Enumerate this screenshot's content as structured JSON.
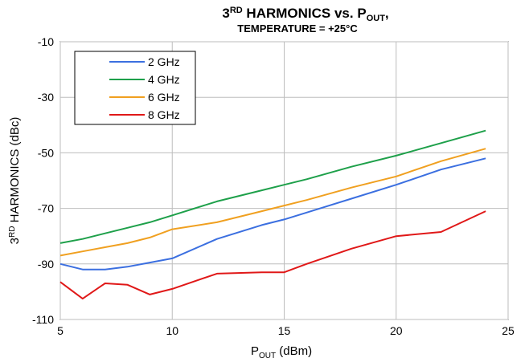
{
  "chart_data": {
    "type": "line",
    "title": {
      "pre": "3",
      "sup": "RD",
      "mid": " HARMONICS vs. P",
      "sub": "OUT",
      "post": ","
    },
    "subtitle": "TEMPERATURE = +25°C",
    "xlabel": {
      "pre": "P",
      "sub": "OUT",
      "post": " (dBm)"
    },
    "ylabel": {
      "pre": "3",
      "sup": "RD",
      "post": " HARMONICS (dBc)"
    },
    "xlim": [
      5,
      25
    ],
    "ylim": [
      -110,
      -10
    ],
    "xticks": [
      5,
      10,
      15,
      20,
      25
    ],
    "yticks": [
      -110,
      -90,
      -70,
      -50,
      -30,
      -10
    ],
    "grid": true,
    "legend_position": "top-left",
    "series": [
      {
        "name": "2 GHz",
        "color": "#3b6fe0",
        "x": [
          5,
          6,
          7,
          8,
          9,
          10,
          12,
          14,
          15,
          16,
          18,
          20,
          22,
          24
        ],
        "y": [
          -90,
          -92,
          -92,
          -91,
          -89.5,
          -88,
          -81,
          -76,
          -74,
          -71.5,
          -66.5,
          -61.5,
          -56,
          -52
        ]
      },
      {
        "name": "4 GHz",
        "color": "#1ea04a",
        "x": [
          5,
          6,
          7,
          8,
          9,
          10,
          12,
          14,
          15,
          16,
          18,
          20,
          22,
          24
        ],
        "y": [
          -82.5,
          -81,
          -79,
          -77,
          -75,
          -72.5,
          -67.5,
          -63.5,
          -61.5,
          -59.5,
          -55,
          -51,
          -46.5,
          -42
        ]
      },
      {
        "name": "6 GHz",
        "color": "#f0a020",
        "x": [
          5,
          6,
          7,
          8,
          9,
          10,
          12,
          14,
          15,
          16,
          18,
          20,
          22,
          24
        ],
        "y": [
          -87,
          -85.5,
          -84,
          -82.5,
          -80.5,
          -77.5,
          -75,
          -71,
          -69,
          -67,
          -62.5,
          -58.5,
          -53,
          -48.5
        ]
      },
      {
        "name": "8 GHz",
        "color": "#e01818",
        "x": [
          5,
          6,
          7,
          8,
          9,
          10,
          12,
          14,
          15,
          16,
          18,
          20,
          22,
          24
        ],
        "y": [
          -96.5,
          -102.5,
          -97,
          -97.5,
          -101,
          -99,
          -93.5,
          -93,
          -93,
          -90,
          -84.5,
          -80,
          -78.5,
          -71
        ]
      }
    ]
  }
}
